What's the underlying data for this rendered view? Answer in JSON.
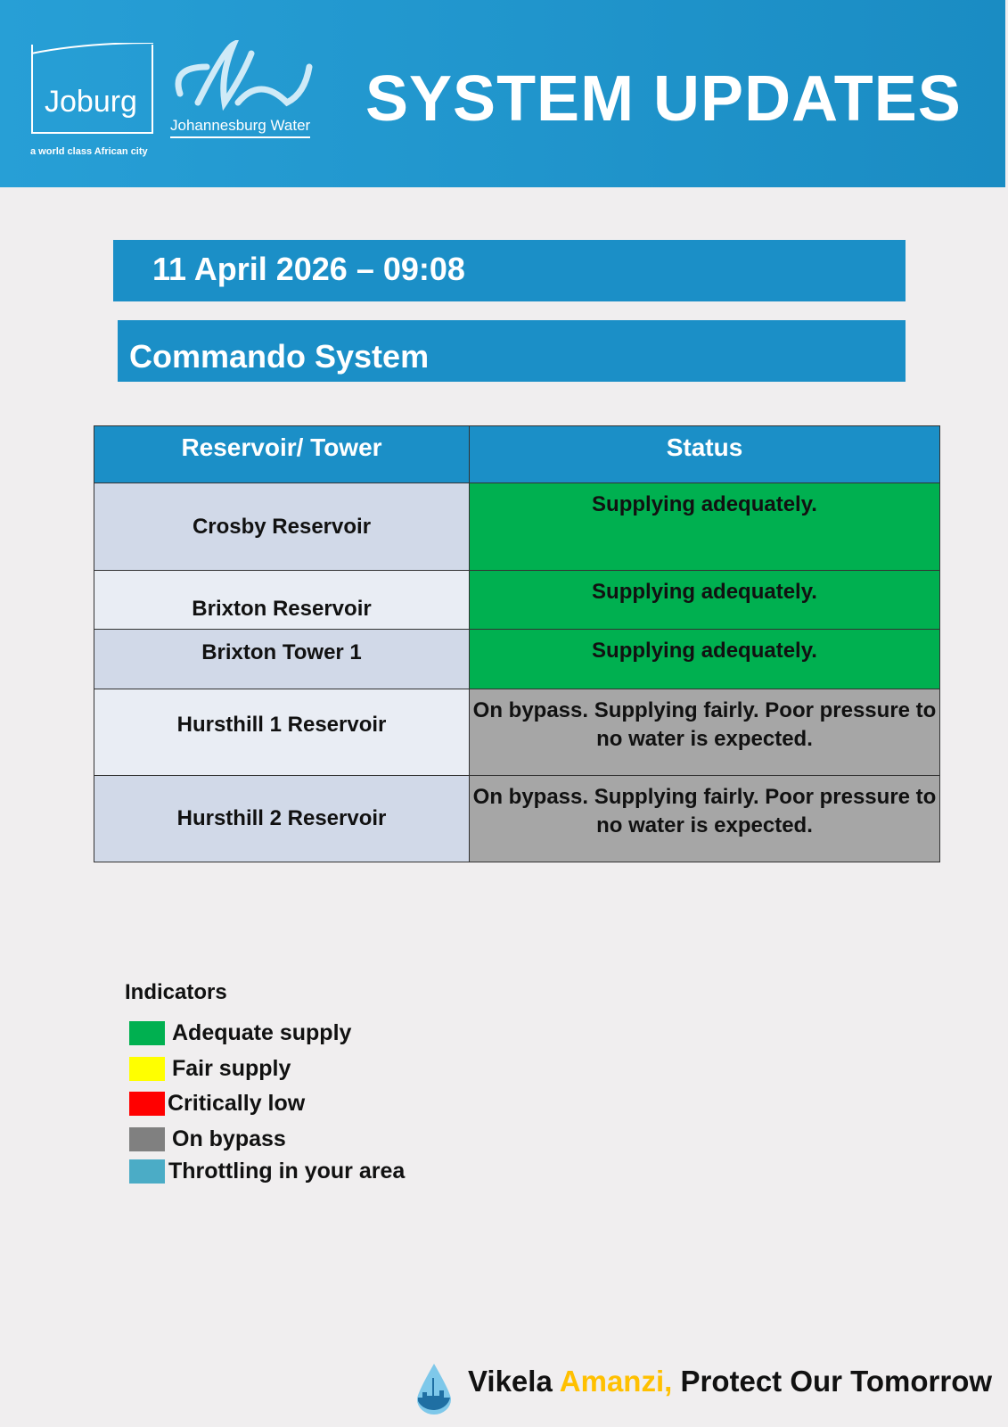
{
  "header": {
    "logo_joburg": "Joburg",
    "tagline": "a world class African city",
    "logo_water": "Johannesburg Water",
    "title": "SYSTEM UPDATES"
  },
  "date": "11 April 2026 – 09:08",
  "system": "Commando System",
  "table": {
    "headers": [
      "Reservoir/ Tower",
      "Status"
    ],
    "rows": [
      {
        "name": "Crosby Reservoir",
        "status": "Supplying adequately.",
        "color": "#00b050"
      },
      {
        "name": "Brixton Reservoir",
        "status": "Supplying adequately.",
        "color": "#00b050"
      },
      {
        "name": "Brixton Tower 1",
        "status": "Supplying adequately.",
        "color": "#00b050"
      },
      {
        "name": "Hursthill 1 Reservoir",
        "status": "On bypass. Supplying fairly. Poor pressure to no water is expected.",
        "color": "#a6a6a6"
      },
      {
        "name": "Hursthill 2 Reservoir",
        "status": "On bypass. Supplying fairly. Poor pressure to no water is expected.",
        "color": "#a6a6a6"
      }
    ]
  },
  "indicators": {
    "title": "Indicators",
    "items": [
      {
        "label": "Adequate supply",
        "color": "#00b050"
      },
      {
        "label": "Fair supply",
        "color": "#ffff00"
      },
      {
        "label": "Critically low",
        "color": "#ff0000"
      },
      {
        "label": "On bypass",
        "color": "#808080"
      },
      {
        "label": "Throttling in your area",
        "color": "#4bacc6"
      }
    ]
  },
  "footer": {
    "part1": "Vikela ",
    "part2": "Amanzi,",
    "part3": " Protect Our Tomorrow",
    "accent": "#ffc000"
  }
}
